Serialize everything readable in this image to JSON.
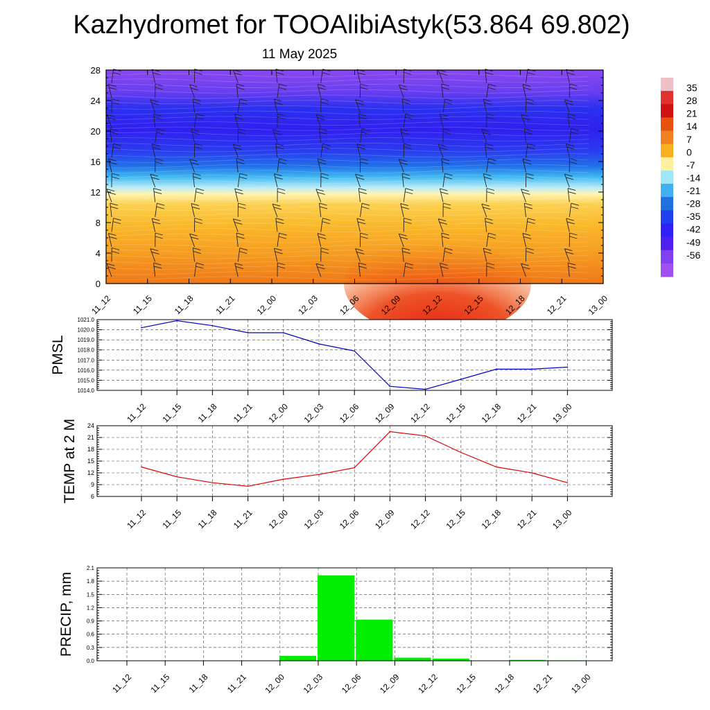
{
  "title": "Kazhydromet for TOOAlibiAstyk(53.864 69.802)",
  "subtitle": "11 May 2025",
  "times": [
    "11_12",
    "11_15",
    "11_18",
    "11_21",
    "12_00",
    "12_03",
    "12_06",
    "12_09",
    "12_12",
    "12_15",
    "12_18",
    "12_21",
    "13_00"
  ],
  "colorbar": {
    "labels": [
      "35",
      "28",
      "21",
      "14",
      "7",
      "0",
      "-7",
      "-14",
      "-21",
      "-28",
      "-35",
      "-42",
      "-49",
      "-56"
    ],
    "colors": [
      "#f0c0c8",
      "#e03030",
      "#d01010",
      "#e85010",
      "#f08020",
      "#f8b020",
      "#fff0a0",
      "#a0e8f8",
      "#40b0f0",
      "#2070e0",
      "#2040f0",
      "#3020f8",
      "#5020f0",
      "#8040f0",
      "#a050f0"
    ]
  },
  "chart_data": [
    {
      "type": "heatmap",
      "name": "temperature-wind cross-section",
      "x": [
        "11_12",
        "11_15",
        "11_18",
        "11_21",
        "12_00",
        "12_03",
        "12_06",
        "12_09",
        "12_12",
        "12_15",
        "12_18",
        "12_21",
        "13_00"
      ],
      "y_ticks": [
        0,
        4,
        8,
        12,
        16,
        20,
        24,
        28
      ],
      "ylim": [
        0,
        28
      ],
      "bands": [
        {
          "from": 0,
          "to": 4,
          "value": 14
        },
        {
          "from": 4,
          "to": 8,
          "value": 7
        },
        {
          "from": 8,
          "to": 12,
          "value": 0
        },
        {
          "from": 12,
          "to": 14,
          "value": -14
        },
        {
          "from": 14,
          "to": 16,
          "value": -28
        },
        {
          "from": 16,
          "to": 19,
          "value": -49
        },
        {
          "from": 19,
          "to": 24,
          "value": -56
        },
        {
          "from": 24,
          "to": 28,
          "value": -49
        }
      ],
      "warm_core": {
        "x_center": "12_12",
        "max_y": 5,
        "value": 21
      }
    },
    {
      "type": "line",
      "ylabel": "PMSL",
      "x": [
        "11_12",
        "11_15",
        "11_18",
        "11_21",
        "12_00",
        "12_03",
        "12_06",
        "12_09",
        "12_12",
        "12_15",
        "12_18",
        "12_21",
        "13_00"
      ],
      "values": [
        1020.2,
        1020.9,
        1020.4,
        1019.7,
        1019.7,
        1018.6,
        1017.9,
        1014.4,
        1014.1,
        1015.1,
        1016.1,
        1016.1,
        1016.3
      ],
      "ylim": [
        1014.0,
        1021.0
      ],
      "y_ticks": [
        "1014.0",
        "1015.0",
        "1016.0",
        "1017.0",
        "1018.0",
        "1019.0",
        "1020.0",
        "1021.0"
      ],
      "color": "#0000cc"
    },
    {
      "type": "line",
      "ylabel": "TEMP at 2 M",
      "x": [
        "11_12",
        "11_15",
        "11_18",
        "11_21",
        "12_00",
        "12_03",
        "12_06",
        "12_09",
        "12_12",
        "12_15",
        "12_18",
        "12_21",
        "13_00"
      ],
      "values": [
        13.5,
        11.0,
        9.5,
        8.6,
        10.4,
        11.6,
        13.3,
        22.5,
        21.4,
        17.2,
        13.5,
        12.0,
        9.5
      ],
      "ylim": [
        6,
        24
      ],
      "y_ticks": [
        "6",
        "9",
        "12",
        "15",
        "18",
        "21",
        "24"
      ],
      "color": "#dd0000"
    },
    {
      "type": "bar",
      "ylabel": "PRECIP, mm",
      "x": [
        "11_12",
        "11_15",
        "11_18",
        "11_21",
        "12_00",
        "12_03",
        "12_06",
        "12_09",
        "12_12",
        "12_15",
        "12_18",
        "12_21",
        "13_00"
      ],
      "values": [
        0,
        0,
        0,
        0,
        0.11,
        1.93,
        0.93,
        0.07,
        0.05,
        0,
        0.02,
        0.01,
        0
      ],
      "ylim": [
        0,
        2.1
      ],
      "y_ticks": [
        "0.0",
        "0.3",
        "0.6",
        "0.9",
        "1.2",
        "1.5",
        "1.8",
        "2.1"
      ],
      "color": "#00ee00"
    }
  ]
}
